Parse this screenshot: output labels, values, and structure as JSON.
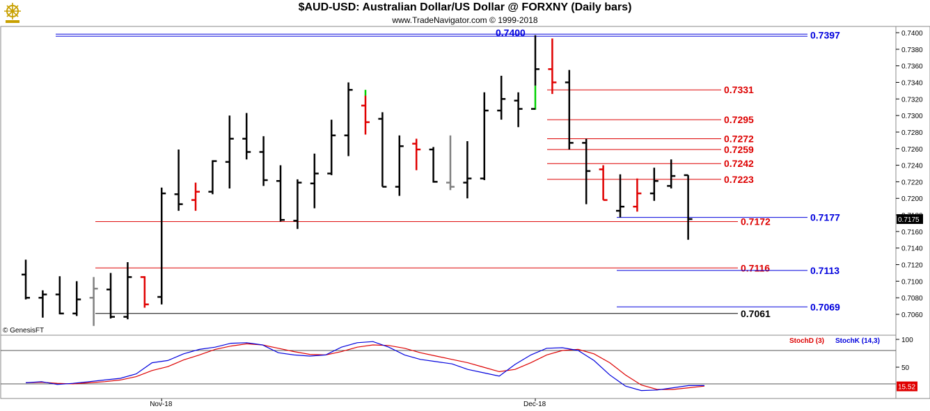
{
  "header": {
    "title": "$AUD-USD:  Australian Dollar/US Dollar @ FORXNY  (Daily bars)",
    "subtitle": "www.TradeNavigator.com © 1999-2018",
    "logo_icon": "ship-wheel-logo-icon"
  },
  "chart_data": {
    "type": "ohlc",
    "price_axis": {
      "min": 0.704,
      "max": 0.74,
      "step": 0.002,
      "ticks": [
        "0.7400",
        "0.7380",
        "0.7360",
        "0.7340",
        "0.7320",
        "0.7300",
        "0.7280",
        "0.7260",
        "0.7240",
        "0.7220",
        "0.7200",
        "0.7180",
        "0.7160",
        "0.7140",
        "0.7120",
        "0.7100",
        "0.7080",
        "0.7060"
      ],
      "current_price": "0.7175"
    },
    "time_axis": {
      "labels": [
        {
          "text": "Nov-18",
          "bar_index": 8
        },
        {
          "text": "Dec-18",
          "bar_index": 30
        }
      ]
    },
    "bars": [
      {
        "o": 0.7108,
        "h": 0.7126,
        "l": 0.7078,
        "c": 0.708,
        "color": "black"
      },
      {
        "o": 0.708,
        "h": 0.7089,
        "l": 0.7056,
        "c": 0.7084,
        "color": "black"
      },
      {
        "o": 0.7084,
        "h": 0.7106,
        "l": 0.706,
        "c": 0.7061,
        "color": "black"
      },
      {
        "o": 0.7061,
        "h": 0.71,
        "l": 0.7058,
        "c": 0.7078,
        "color": "black"
      },
      {
        "o": 0.708,
        "h": 0.7105,
        "l": 0.7046,
        "c": 0.7091,
        "color": "gray"
      },
      {
        "o": 0.709,
        "h": 0.711,
        "l": 0.7055,
        "c": 0.7057,
        "color": "black"
      },
      {
        "o": 0.7057,
        "h": 0.7123,
        "l": 0.7054,
        "c": 0.7105,
        "color": "black"
      },
      {
        "o": 0.7105,
        "h": 0.7106,
        "l": 0.7068,
        "c": 0.7072,
        "color": "red"
      },
      {
        "o": 0.7081,
        "h": 0.7213,
        "l": 0.7072,
        "c": 0.7206,
        "color": "black"
      },
      {
        "o": 0.7205,
        "h": 0.7259,
        "l": 0.7185,
        "c": 0.7193,
        "color": "black"
      },
      {
        "o": 0.7198,
        "h": 0.7219,
        "l": 0.7185,
        "c": 0.7208,
        "color": "red"
      },
      {
        "o": 0.7208,
        "h": 0.7246,
        "l": 0.7205,
        "c": 0.7245,
        "color": "black"
      },
      {
        "o": 0.7244,
        "h": 0.73,
        "l": 0.7212,
        "c": 0.7272,
        "color": "black"
      },
      {
        "o": 0.7272,
        "h": 0.7303,
        "l": 0.7247,
        "c": 0.7256,
        "color": "black"
      },
      {
        "o": 0.7256,
        "h": 0.7275,
        "l": 0.7215,
        "c": 0.7222,
        "color": "black"
      },
      {
        "o": 0.7221,
        "h": 0.724,
        "l": 0.7172,
        "c": 0.7174,
        "color": "black"
      },
      {
        "o": 0.7173,
        "h": 0.7223,
        "l": 0.7163,
        "c": 0.7219,
        "color": "black"
      },
      {
        "o": 0.7218,
        "h": 0.7254,
        "l": 0.7188,
        "c": 0.723,
        "color": "black"
      },
      {
        "o": 0.723,
        "h": 0.7295,
        "l": 0.7228,
        "c": 0.7276,
        "color": "black"
      },
      {
        "o": 0.7276,
        "h": 0.734,
        "l": 0.7251,
        "c": 0.7331,
        "color": "black"
      },
      {
        "o": 0.7312,
        "h": 0.7331,
        "l": 0.7277,
        "c": 0.7292,
        "color": "red",
        "high_color": "green"
      },
      {
        "o": 0.7296,
        "h": 0.7304,
        "l": 0.7214,
        "c": 0.7214,
        "color": "black"
      },
      {
        "o": 0.7214,
        "h": 0.7276,
        "l": 0.7203,
        "c": 0.7263,
        "color": "black"
      },
      {
        "o": 0.7266,
        "h": 0.7272,
        "l": 0.7234,
        "c": 0.7259,
        "color": "red"
      },
      {
        "o": 0.7259,
        "h": 0.7262,
        "l": 0.7219,
        "c": 0.722,
        "color": "black"
      },
      {
        "o": 0.7219,
        "h": 0.7276,
        "l": 0.721,
        "c": 0.7214,
        "color": "gray"
      },
      {
        "o": 0.7219,
        "h": 0.7269,
        "l": 0.72,
        "c": 0.7224,
        "color": "black"
      },
      {
        "o": 0.7224,
        "h": 0.7328,
        "l": 0.7222,
        "c": 0.7306,
        "color": "black"
      },
      {
        "o": 0.7306,
        "h": 0.7348,
        "l": 0.7295,
        "c": 0.732,
        "color": "black"
      },
      {
        "o": 0.7318,
        "h": 0.7328,
        "l": 0.7286,
        "c": 0.7308,
        "color": "black"
      },
      {
        "o": 0.7308,
        "h": 0.7397,
        "l": 0.7307,
        "c": 0.7356,
        "color": "black",
        "low_color": "green"
      },
      {
        "o": 0.7356,
        "h": 0.7393,
        "l": 0.7326,
        "c": 0.734,
        "color": "red"
      },
      {
        "o": 0.734,
        "h": 0.7355,
        "l": 0.7259,
        "c": 0.7267,
        "color": "black"
      },
      {
        "o": 0.7267,
        "h": 0.7272,
        "l": 0.7193,
        "c": 0.7233,
        "color": "black"
      },
      {
        "o": 0.7235,
        "h": 0.724,
        "l": 0.7198,
        "c": 0.7198,
        "color": "red"
      },
      {
        "o": 0.7185,
        "h": 0.7229,
        "l": 0.7177,
        "c": 0.719,
        "color": "black"
      },
      {
        "o": 0.719,
        "h": 0.7224,
        "l": 0.7184,
        "c": 0.7206,
        "color": "red"
      },
      {
        "o": 0.7206,
        "h": 0.7237,
        "l": 0.7197,
        "c": 0.7221,
        "color": "black"
      },
      {
        "o": 0.7215,
        "h": 0.7247,
        "l": 0.7212,
        "c": 0.7227,
        "color": "black"
      },
      {
        "o": 0.7228,
        "h": 0.7228,
        "l": 0.715,
        "c": 0.7175,
        "color": "black"
      }
    ],
    "levels": [
      {
        "label": "0.7400",
        "price": 0.74,
        "color": "#0000dd",
        "from_bar": 30,
        "to_bar": 30,
        "label_side": "left"
      },
      {
        "label": "0.7397",
        "price": 0.7397,
        "color": "#0000dd",
        "from_bar": -6,
        "to_bar": 48,
        "label_side": "right",
        "double": true
      },
      {
        "label": "0.7331",
        "price": 0.7331,
        "color": "#dd0000",
        "from_bar": 31,
        "to_bar": 41,
        "label_side": "right"
      },
      {
        "label": "0.7295",
        "price": 0.7295,
        "color": "#dd0000",
        "from_bar": 30,
        "to_bar": 41,
        "label_side": "right"
      },
      {
        "label": "0.7272",
        "price": 0.7272,
        "color": "#dd0000",
        "from_bar": 30,
        "to_bar": 41,
        "label_side": "right"
      },
      {
        "label": "0.7259",
        "price": 0.7259,
        "color": "#dd0000",
        "from_bar": 30,
        "to_bar": 41,
        "label_side": "right"
      },
      {
        "label": "0.7242",
        "price": 0.7242,
        "color": "#dd0000",
        "from_bar": 30,
        "to_bar": 41,
        "label_side": "right"
      },
      {
        "label": "0.7223",
        "price": 0.7223,
        "color": "#dd0000",
        "from_bar": 30,
        "to_bar": 41,
        "label_side": "right"
      },
      {
        "label": "0.7177",
        "price": 0.7177,
        "color": "#0000dd",
        "from_bar": 34,
        "to_bar": 45,
        "label_side": "right"
      },
      {
        "label": "0.7172",
        "price": 0.7172,
        "color": "#dd0000",
        "from_bar": 4,
        "to_bar": 42,
        "label_side": "right"
      },
      {
        "label": "0.7116",
        "price": 0.7116,
        "color": "#dd0000",
        "from_bar": 4,
        "to_bar": 42,
        "label_side": "right"
      },
      {
        "label": "0.7113",
        "price": 0.7113,
        "color": "#0000dd",
        "from_bar": 34,
        "to_bar": 45,
        "label_side": "right"
      },
      {
        "label": "0.7069",
        "price": 0.7069,
        "color": "#0000dd",
        "from_bar": 34,
        "to_bar": 45,
        "label_side": "right"
      },
      {
        "label": "0.7061",
        "price": 0.7061,
        "color": "#000000",
        "from_bar": 4,
        "to_bar": 42,
        "label_side": "right"
      }
    ],
    "watermark": "© GenesisFT",
    "stochastic": {
      "legend": [
        {
          "name": "StochD (3)",
          "color": "#dd0000"
        },
        {
          "name": "StochK (14,3)",
          "color": "#0000dd"
        }
      ],
      "ymin": 0,
      "ymax": 100,
      "ticks": [
        "100",
        "50"
      ],
      "reference_lines": [
        80,
        20
      ],
      "current_value": "15.52",
      "stoch_k": [
        22,
        24,
        19,
        21,
        24,
        27,
        30,
        38,
        58,
        62,
        74,
        82,
        86,
        93,
        94,
        90,
        76,
        72,
        70,
        72,
        86,
        94,
        96,
        86,
        72,
        64,
        60,
        56,
        46,
        40,
        34,
        55,
        72,
        84,
        85,
        80,
        62,
        36,
        16,
        8,
        9,
        13,
        17,
        17
      ],
      "stoch_d": [
        22,
        23,
        21,
        20,
        22,
        24,
        27,
        33,
        44,
        51,
        63,
        72,
        82,
        88,
        92,
        90,
        84,
        78,
        73,
        72,
        78,
        86,
        90,
        89,
        84,
        76,
        70,
        64,
        58,
        50,
        42,
        46,
        58,
        72,
        80,
        82,
        74,
        58,
        36,
        18,
        10,
        10,
        13,
        16
      ]
    }
  }
}
